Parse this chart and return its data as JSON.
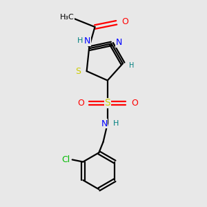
{
  "background_color": "#e8e8e8",
  "black": "#000000",
  "blue": "#0000FF",
  "red": "#FF0000",
  "sulfur_color": "#cccc00",
  "teal": "#008080",
  "green": "#00BB00",
  "bond_lw": 1.6,
  "font_size": 9,
  "xlim": [
    0.1,
    0.9
  ],
  "ylim": [
    0.02,
    0.98
  ]
}
